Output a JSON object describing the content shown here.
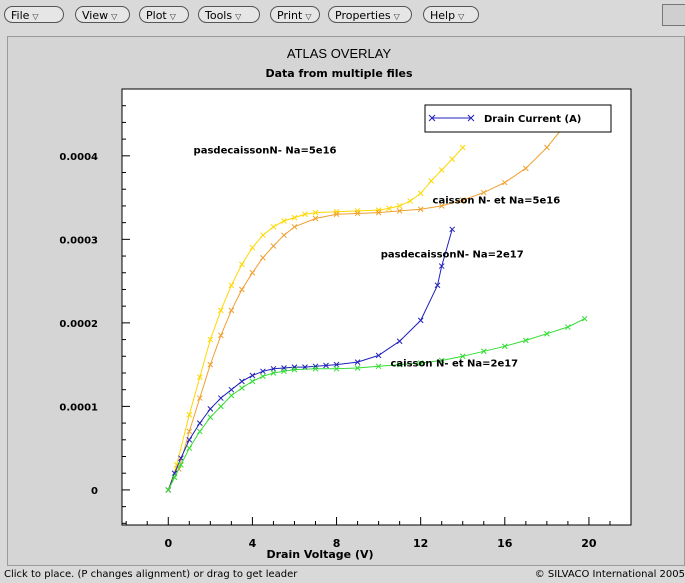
{
  "menu": [
    {
      "label": "File"
    },
    {
      "label": "View"
    },
    {
      "label": "Plot"
    },
    {
      "label": "Tools"
    },
    {
      "label": "Print"
    },
    {
      "label": "Properties"
    },
    {
      "label": "Help"
    }
  ],
  "menu_arrow": "▽",
  "status": {
    "left": "Click to place. (P changes alignment) or drag to get leader",
    "right": "© SILVACO International 2005"
  },
  "chart_data": {
    "type": "line",
    "title": "ATLAS OVERLAY",
    "subtitle": "Data from multiple files",
    "xlabel": "Drain Voltage (V)",
    "ylabel": "",
    "xlim": [
      -2.2,
      22
    ],
    "ylim": [
      -4.2e-05,
      0.00048
    ],
    "xticks": [
      0,
      4,
      8,
      12,
      16,
      20
    ],
    "yticks": [
      0,
      0.0001,
      0.0002,
      0.0003,
      0.0004
    ],
    "ytick_labels": [
      "0",
      "0.0001",
      "0.0002",
      "0.0003",
      "0.0004"
    ],
    "grid": false,
    "legend": {
      "position": "top-right",
      "entries": [
        {
          "name": "Drain Current (A)",
          "color": "#2222bb"
        }
      ]
    },
    "series": [
      {
        "name": "pasdecaissonN-  Na=5e16",
        "color": "#ffd700",
        "marker": "x",
        "x": [
          0,
          0.4,
          1,
          1.5,
          2,
          2.5,
          3,
          3.5,
          4,
          4.5,
          5,
          5.5,
          6,
          6.5,
          7,
          8,
          9,
          10,
          10.5,
          11,
          11.5,
          12,
          12.5,
          13,
          13.5,
          14
        ],
        "y": [
          0,
          3e-05,
          9e-05,
          0.000135,
          0.00018,
          0.000215,
          0.000245,
          0.00027,
          0.00029,
          0.000305,
          0.000315,
          0.000322,
          0.000326,
          0.00033,
          0.000332,
          0.000333,
          0.000334,
          0.000335,
          0.000337,
          0.00034,
          0.000346,
          0.000355,
          0.00037,
          0.000383,
          0.000396,
          0.00041
        ]
      },
      {
        "name": "caisson N-  et Na=5e16",
        "color": "#f0a030",
        "marker": "x",
        "x": [
          0,
          0.5,
          1,
          1.5,
          2,
          2.5,
          3,
          3.5,
          4,
          4.5,
          5,
          5.5,
          6,
          7,
          8,
          9,
          10,
          11,
          12,
          13,
          14,
          15,
          16,
          17,
          18,
          18.8
        ],
        "y": [
          0,
          2.5e-05,
          7e-05,
          0.00011,
          0.00015,
          0.000185,
          0.000215,
          0.00024,
          0.00026,
          0.000278,
          0.000292,
          0.000305,
          0.000315,
          0.000325,
          0.00033,
          0.000331,
          0.000332,
          0.000334,
          0.000336,
          0.00034,
          0.000347,
          0.000356,
          0.000368,
          0.000385,
          0.00041,
          0.000435
        ]
      },
      {
        "name": "pasdecaissonN-  Na=2e17",
        "color": "#2222bb",
        "marker": "x",
        "x": [
          0,
          0.3,
          0.6,
          1,
          1.5,
          2,
          2.5,
          3,
          3.5,
          4,
          4.5,
          5,
          5.5,
          6,
          6.5,
          7,
          7.5,
          8,
          9,
          10,
          11,
          12,
          12.8,
          13,
          13.5
        ],
        "y": [
          0,
          2e-05,
          3.8e-05,
          6e-05,
          8e-05,
          9.7e-05,
          0.00011,
          0.00012,
          0.00013,
          0.000137,
          0.000142,
          0.000145,
          0.000146,
          0.000147,
          0.000147,
          0.000148,
          0.000149,
          0.00015,
          0.000153,
          0.000161,
          0.000178,
          0.000203,
          0.000245,
          0.000268,
          0.000312
        ]
      },
      {
        "name": "caisson N-  et Na=2e17",
        "color": "#33dd33",
        "marker": "x",
        "x": [
          0,
          0.3,
          0.6,
          1,
          1.5,
          2,
          2.5,
          3,
          3.5,
          4,
          4.5,
          5,
          5.5,
          6,
          7,
          8,
          9,
          10,
          11,
          12,
          13,
          14,
          15,
          16,
          17,
          18,
          19,
          19.8
        ],
        "y": [
          0,
          1.5e-05,
          3e-05,
          5e-05,
          7e-05,
          8.7e-05,
          0.0001,
          0.000113,
          0.000122,
          0.00013,
          0.000136,
          0.00014,
          0.000142,
          0.000144,
          0.000145,
          0.000145,
          0.000146,
          0.000148,
          0.00015,
          0.000152,
          0.000155,
          0.00016,
          0.000166,
          0.000172,
          0.000179,
          0.000187,
          0.000195,
          0.000205
        ]
      }
    ],
    "annotations": [
      {
        "text": "pasdecaissonN-  Na=5e16",
        "x": 4.6,
        "y": 0.000403
      },
      {
        "text": "caisson N-  et Na=5e16",
        "x": 15.6,
        "y": 0.000343
      },
      {
        "text": "pasdecaissonN-  Na=2e17",
        "x": 13.5,
        "y": 0.000278
      },
      {
        "text": "caisson N-  et Na=2e17",
        "x": 13.6,
        "y": 0.000148
      }
    ]
  }
}
